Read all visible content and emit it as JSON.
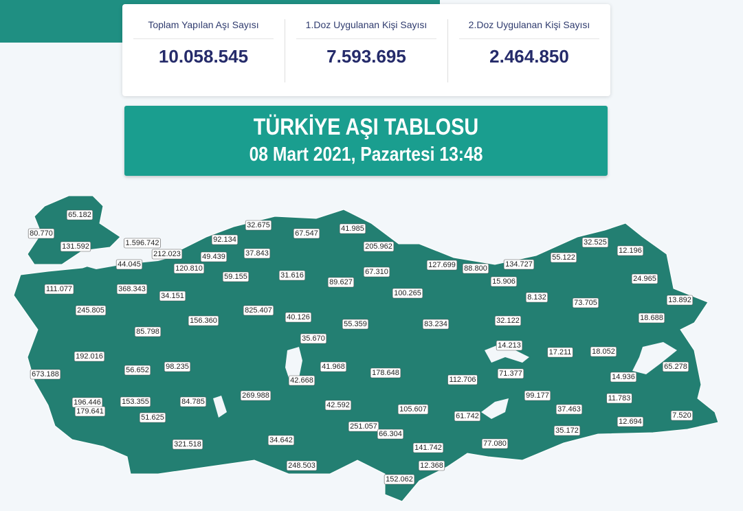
{
  "stats": [
    {
      "label": "Toplam Yapılan Aşı Sayısı",
      "value": "10.058.545"
    },
    {
      "label": "1.Doz Uygulanan Kişi Sayısı",
      "value": "7.593.695"
    },
    {
      "label": "2.Doz Uygulanan Kişi Sayısı",
      "value": "2.464.850"
    }
  ],
  "banner": {
    "title": "TÜRKİYE AŞI TABLOSU",
    "date": "08 Mart 2021, Pazartesi 13:48"
  },
  "map": {
    "labels": [
      "65.182",
      "80.770",
      "131.592",
      "1.596.742",
      "212.023",
      "44.045",
      "120.810",
      "92.134",
      "32.675",
      "67.547",
      "41.985",
      "205.962",
      "49.439",
      "37.843",
      "111.077",
      "368.343",
      "59.155",
      "31.616",
      "89.627",
      "67.310",
      "127.699",
      "88.800",
      "134.727",
      "55.122",
      "32.525",
      "12.196",
      "15.906",
      "100.265",
      "34.151",
      "245.805",
      "825.407",
      "156.360",
      "40.126",
      "55.359",
      "83.234",
      "8.132",
      "73.705",
      "24.965",
      "13.892",
      "18.688",
      "32.122",
      "85.798",
      "35.670",
      "192.016",
      "98.235",
      "41.968",
      "14.213",
      "17.211",
      "18.052",
      "178.648",
      "56.652",
      "673.188",
      "71.377",
      "65.278",
      "42.668",
      "112.706",
      "14.936",
      "196.446",
      "153.355",
      "84.785",
      "269.988",
      "42.592",
      "99.177",
      "11.783",
      "105.607",
      "37.463",
      "61.742",
      "51.625",
      "179.641",
      "251.057",
      "66.304",
      "12.694",
      "7.520",
      "35.172",
      "34.642",
      "321.518",
      "77.080",
      "141.742",
      "12.368",
      "248.503",
      "152.062"
    ]
  }
}
